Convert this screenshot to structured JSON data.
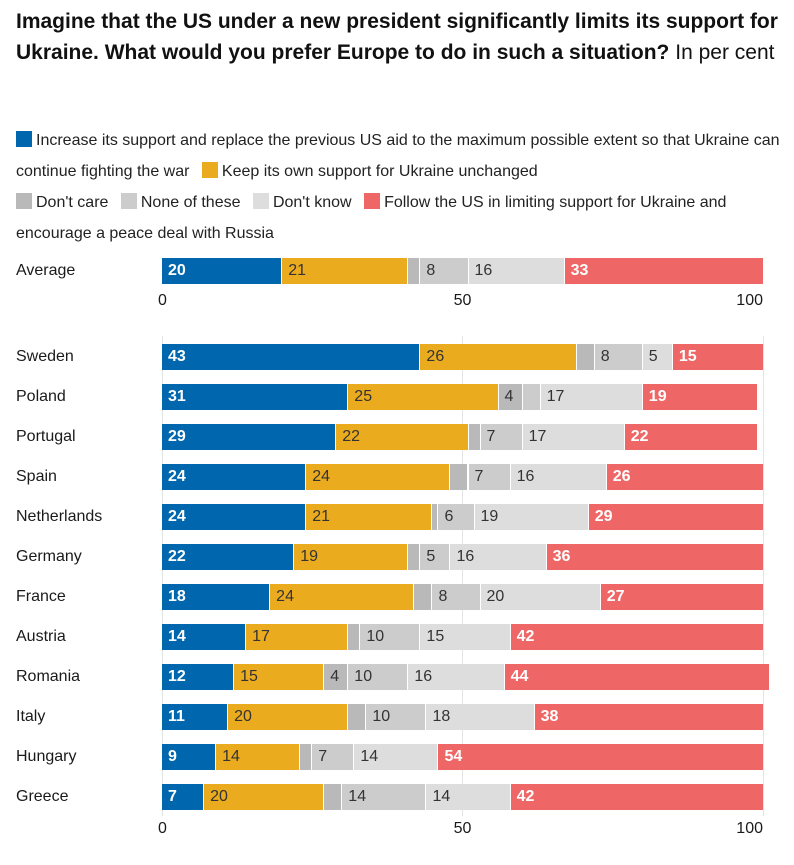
{
  "chart_data": {
    "type": "bar",
    "orientation": "horizontal-stacked-100",
    "title": "Imagine that the US under a new president significantly limits its support for Ukraine. What would you prefer Europe to do in such a situation?",
    "subtitle": "In per cent",
    "xlabel": "",
    "ylabel": "",
    "xlim": [
      0,
      100
    ],
    "xticks": [
      "0",
      "50",
      "100"
    ],
    "legend_position": "top",
    "series": [
      {
        "name": "Increase its support and replace the previous US aid to the maximum possible extent so that Ukraine can continue fighting the war",
        "color": "#0066ad",
        "label_color": "#ffffff",
        "label_weight": "bold"
      },
      {
        "name": "Keep its own support for Ukraine unchanged",
        "color": "#ebab1e",
        "label_color": "#333333",
        "label_weight": "normal"
      },
      {
        "name": "Don't care",
        "color": "#b9b9b9",
        "label_color": "#333333",
        "label_weight": "normal"
      },
      {
        "name": "None of these",
        "color": "#cccccc",
        "label_color": "#333333",
        "label_weight": "normal"
      },
      {
        "name": "Don't know",
        "color": "#dddddd",
        "label_color": "#333333",
        "label_weight": "normal"
      },
      {
        "name": "Follow the US in limiting support for Ukraine and encourage a peace deal with Russia",
        "color": "#ef6666",
        "label_color": "#ffffff",
        "label_weight": "bold"
      }
    ],
    "average": {
      "category": "Average",
      "values": [
        20,
        21,
        2,
        8,
        16,
        33
      ],
      "labels": [
        "20",
        "21",
        "",
        "8",
        "16",
        "33"
      ]
    },
    "categories": [
      "Sweden",
      "Poland",
      "Portugal",
      "Spain",
      "Netherlands",
      "Germany",
      "France",
      "Austria",
      "Romania",
      "Italy",
      "Hungary",
      "Greece"
    ],
    "rows": [
      {
        "category": "Sweden",
        "values": [
          43,
          26,
          3,
          8,
          5,
          15
        ],
        "labels": [
          "43",
          "26",
          "",
          "8",
          "5",
          "15"
        ]
      },
      {
        "category": "Poland",
        "values": [
          31,
          25,
          4,
          3,
          17,
          19
        ],
        "labels": [
          "31",
          "25",
          "4",
          "",
          "17",
          "19"
        ]
      },
      {
        "category": "Portugal",
        "values": [
          29,
          22,
          2,
          7,
          17,
          22
        ],
        "labels": [
          "29",
          "22",
          "",
          "7",
          "17",
          "22"
        ]
      },
      {
        "category": "Spain",
        "values": [
          24,
          24,
          3,
          7,
          16,
          26
        ],
        "labels": [
          "24",
          "24",
          "",
          "7",
          "16",
          "26"
        ]
      },
      {
        "category": "Netherlands",
        "values": [
          24,
          21,
          1,
          6,
          19,
          29
        ],
        "labels": [
          "24",
          "21",
          "",
          "6",
          "19",
          "29"
        ]
      },
      {
        "category": "Germany",
        "values": [
          22,
          19,
          2,
          5,
          16,
          36
        ],
        "labels": [
          "22",
          "19",
          "",
          "5",
          "16",
          "36"
        ]
      },
      {
        "category": "France",
        "values": [
          18,
          24,
          3,
          8,
          20,
          27
        ],
        "labels": [
          "18",
          "24",
          "",
          "8",
          "20",
          "27"
        ]
      },
      {
        "category": "Austria",
        "values": [
          14,
          17,
          2,
          10,
          15,
          42
        ],
        "labels": [
          "14",
          "17",
          "",
          "10",
          "15",
          "42"
        ]
      },
      {
        "category": "Romania",
        "values": [
          12,
          15,
          4,
          10,
          16,
          44
        ],
        "labels": [
          "12",
          "15",
          "4",
          "10",
          "16",
          "44"
        ]
      },
      {
        "category": "Italy",
        "values": [
          11,
          20,
          3,
          10,
          18,
          38
        ],
        "labels": [
          "11",
          "20",
          "",
          "10",
          "18",
          "38"
        ]
      },
      {
        "category": "Hungary",
        "values": [
          9,
          14,
          2,
          7,
          14,
          54
        ],
        "labels": [
          "9",
          "14",
          "",
          "7",
          "14",
          "54"
        ]
      },
      {
        "category": "Greece",
        "values": [
          7,
          20,
          3,
          14,
          14,
          42
        ],
        "labels": [
          "7",
          "20",
          "",
          "14",
          "14",
          "42"
        ]
      }
    ]
  },
  "header": {
    "title": "Imagine that the US under a new president significantly limits its support for Ukraine. What would you prefer Europe to do in such a situation?",
    "unit": "In per cent"
  },
  "legend": [
    {
      "label": "Increase its support and replace the previous US aid to the maximum possible extent so that Ukraine can continue fighting the war",
      "color": "#0066ad"
    },
    {
      "label": "Keep its own support for Ukraine unchanged",
      "color": "#ebab1e"
    },
    {
      "label": "Don't care",
      "color": "#b9b9b9"
    },
    {
      "label": "None of these",
      "color": "#cccccc"
    },
    {
      "label": "Don't know",
      "color": "#dddddd"
    },
    {
      "label": "Follow the US in limiting support for Ukraine and encourage a peace deal with Russia",
      "color": "#ef6666"
    }
  ]
}
